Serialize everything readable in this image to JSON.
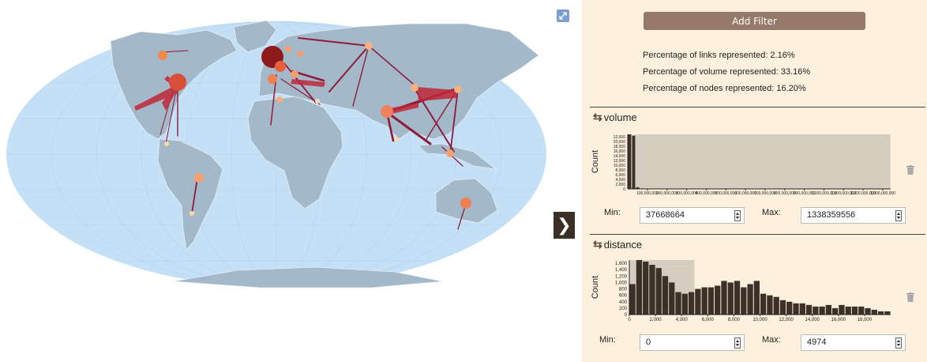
{
  "panel": {
    "add_filter_label": "Add Filter",
    "toggle_glyph": "❯",
    "stats": [
      "Percentage of links represented: 2.16%",
      "Percentage of volume represented: 33.16%",
      "Percentage of nodes represented: 16.20%"
    ]
  },
  "filters": {
    "volume": {
      "title": "volume",
      "min_label": "Min:",
      "max_label": "Max:",
      "min_value": "37668664",
      "max_value": "1338359556",
      "count_label": "Count"
    },
    "distance": {
      "title": "distance",
      "min_label": "Min:",
      "max_label": "Max:",
      "min_value": "0",
      "max_value": "4974",
      "count_label": "Count"
    }
  },
  "icons": {
    "expand": "expand-icon",
    "swap": "swap-icon",
    "trash": "trash-icon",
    "chevron": "chevron-right-icon"
  },
  "colors": {
    "panel_bg": "#fdf0dc",
    "button": "#95796a",
    "bar": "#3b3128",
    "selection": "#d4cdc0",
    "ocean": "#c3e0f7",
    "land": "#a3b8c8",
    "link": "#8e1b3c",
    "node": "#f0a070"
  },
  "chart_data": [
    {
      "type": "bar",
      "name": "volume",
      "ylabel": "Count",
      "yticks": [
        "0",
        "2,000",
        "4,000",
        "6,000",
        "8,000",
        "10,000",
        "12,000",
        "14,000",
        "16,000",
        "18,000",
        "20,000",
        "22,000"
      ],
      "xticks": [
        "100,000,000",
        "200,000,000",
        "300,000,000",
        "400,000,000",
        "500,000,000",
        "600,000,000",
        "700,000,000",
        "800,000,000",
        "900,000,000",
        "1,000,000,000",
        "1,100,000,000",
        "1,200,000,000",
        "1,300,000,000"
      ],
      "ylim": [
        0,
        23000
      ],
      "xlim": [
        0,
        1340000000
      ],
      "bins": [
        {
          "x0": 0,
          "x1": 20000000,
          "count": 23000
        },
        {
          "x0": 20000000,
          "x1": 40000000,
          "count": 22500
        },
        {
          "x0": 40000000,
          "x1": 60000000,
          "count": 700
        },
        {
          "x0": 60000000,
          "x1": 80000000,
          "count": 200
        }
      ],
      "selection": [
        37668664,
        1338359556
      ]
    },
    {
      "type": "bar",
      "name": "distance",
      "ylabel": "Count",
      "yticks": [
        "0",
        "200",
        "400",
        "600",
        "800",
        "1,000",
        "1,200",
        "1,400",
        "1,600"
      ],
      "xticks": [
        "0",
        "2,000",
        "4,000",
        "6,000",
        "8,000",
        "10,000",
        "12,000",
        "14,000",
        "16,000",
        "18,000"
      ],
      "ylim": [
        0,
        1700
      ],
      "xlim": [
        0,
        20000
      ],
      "bin_width": 500,
      "counts": [
        950,
        1700,
        1650,
        1550,
        1450,
        1200,
        1000,
        700,
        650,
        700,
        800,
        850,
        850,
        900,
        1050,
        1000,
        1050,
        850,
        950,
        1050,
        650,
        600,
        550,
        450,
        400,
        350,
        350,
        300,
        250,
        250,
        300,
        200,
        300,
        250,
        250,
        250,
        200,
        150,
        100,
        100
      ],
      "selection": [
        0,
        4974
      ]
    }
  ]
}
